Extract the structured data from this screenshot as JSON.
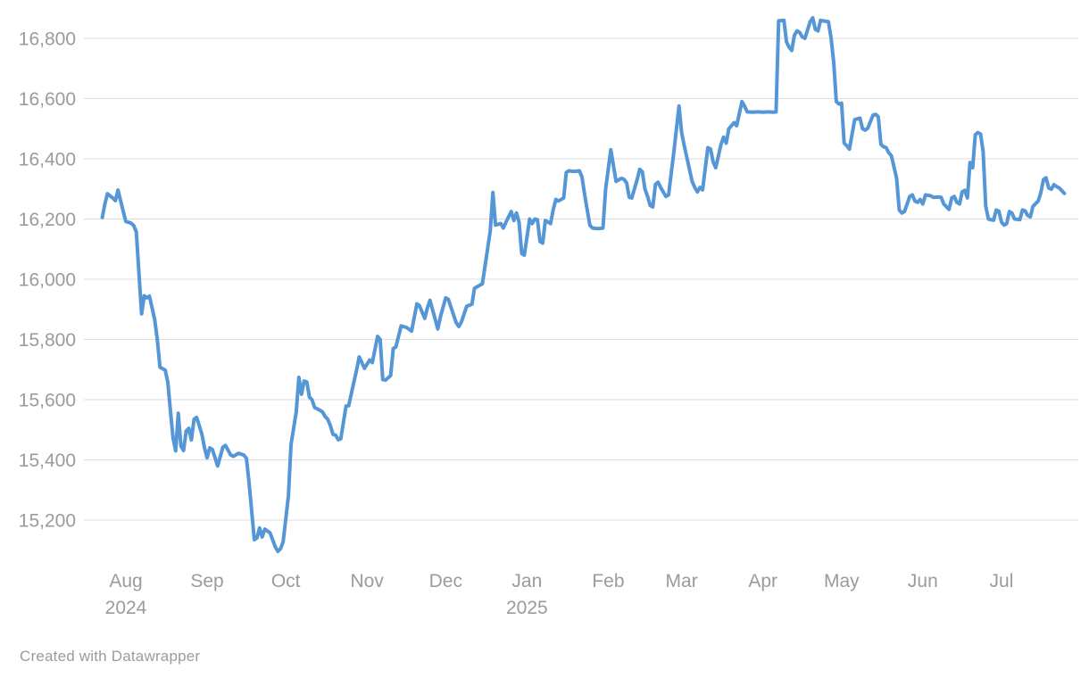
{
  "footer": {
    "credit": "Created with Datawrapper"
  },
  "chart_data": {
    "type": "line",
    "title": "",
    "xlabel": "",
    "ylabel": "",
    "grid": true,
    "legend": "none",
    "ylim": [
      15080,
      16880
    ],
    "x_range": [
      "2024-07-23",
      "2025-07-25"
    ],
    "colors": {
      "line": "#5596d6",
      "grid": "#dddddd",
      "labels": "#9b9b9b",
      "background": "#ffffff"
    },
    "y_ticks": [
      {
        "value": 16800,
        "label": "16,800"
      },
      {
        "value": 16600,
        "label": "16,600"
      },
      {
        "value": 16400,
        "label": "16,400"
      },
      {
        "value": 16200,
        "label": "16,200"
      },
      {
        "value": 16000,
        "label": "16,000"
      },
      {
        "value": 15800,
        "label": "15,800"
      },
      {
        "value": 15600,
        "label": "15,600"
      },
      {
        "value": 15400,
        "label": "15,400"
      },
      {
        "value": 15200,
        "label": "15,200"
      }
    ],
    "x_ticks": [
      {
        "label": "Aug",
        "date": "2024-08-01",
        "year": "2024"
      },
      {
        "label": "Sep",
        "date": "2024-09-01"
      },
      {
        "label": "Oct",
        "date": "2024-10-01"
      },
      {
        "label": "Nov",
        "date": "2024-11-01"
      },
      {
        "label": "Dec",
        "date": "2024-12-01"
      },
      {
        "label": "Jan",
        "date": "2025-01-01",
        "year": "2025"
      },
      {
        "label": "Feb",
        "date": "2025-02-01"
      },
      {
        "label": "Mar",
        "date": "2025-03-01"
      },
      {
        "label": "Apr",
        "date": "2025-04-01"
      },
      {
        "label": "May",
        "date": "2025-05-01"
      },
      {
        "label": "Jun",
        "date": "2025-06-01"
      },
      {
        "label": "Jul",
        "date": "2025-07-01"
      }
    ],
    "points": [
      [
        "2024-07-23",
        16205
      ],
      [
        "2024-07-24",
        16250
      ],
      [
        "2024-07-25",
        16284
      ],
      [
        "2024-07-27",
        16270
      ],
      [
        "2024-07-28",
        16261
      ],
      [
        "2024-07-29",
        16296
      ],
      [
        "2024-07-31",
        16225
      ],
      [
        "2024-08-01",
        16192
      ],
      [
        "2024-08-03",
        16186
      ],
      [
        "2024-08-04",
        16178
      ],
      [
        "2024-08-05",
        16157
      ],
      [
        "2024-08-07",
        15885
      ],
      [
        "2024-08-08",
        15945
      ],
      [
        "2024-08-09",
        15938
      ],
      [
        "2024-08-10",
        15944
      ],
      [
        "2024-08-12",
        15866
      ],
      [
        "2024-08-13",
        15800
      ],
      [
        "2024-08-14",
        15708
      ],
      [
        "2024-08-16",
        15698
      ],
      [
        "2024-08-17",
        15658
      ],
      [
        "2024-08-18",
        15564
      ],
      [
        "2024-08-19",
        15472
      ],
      [
        "2024-08-20",
        15430
      ],
      [
        "2024-08-21",
        15555
      ],
      [
        "2024-08-22",
        15446
      ],
      [
        "2024-08-23",
        15431
      ],
      [
        "2024-08-24",
        15496
      ],
      [
        "2024-08-25",
        15505
      ],
      [
        "2024-08-26",
        15466
      ],
      [
        "2024-08-27",
        15535
      ],
      [
        "2024-08-28",
        15541
      ],
      [
        "2024-08-29",
        15514
      ],
      [
        "2024-08-30",
        15485
      ],
      [
        "2024-08-31",
        15440
      ],
      [
        "2024-09-01",
        15407
      ],
      [
        "2024-09-02",
        15440
      ],
      [
        "2024-09-03",
        15435
      ],
      [
        "2024-09-05",
        15380
      ],
      [
        "2024-09-07",
        15442
      ],
      [
        "2024-09-08",
        15448
      ],
      [
        "2024-09-10",
        15416
      ],
      [
        "2024-09-11",
        15412
      ],
      [
        "2024-09-13",
        15422
      ],
      [
        "2024-09-15",
        15416
      ],
      [
        "2024-09-16",
        15405
      ],
      [
        "2024-09-17",
        15325
      ],
      [
        "2024-09-19",
        15135
      ],
      [
        "2024-09-20",
        15141
      ],
      [
        "2024-09-21",
        15174
      ],
      [
        "2024-09-22",
        15144
      ],
      [
        "2024-09-23",
        15170
      ],
      [
        "2024-09-25",
        15158
      ],
      [
        "2024-09-27",
        15111
      ],
      [
        "2024-09-28",
        15096
      ],
      [
        "2024-09-29",
        15105
      ],
      [
        "2024-09-30",
        15128
      ],
      [
        "2024-10-02",
        15280
      ],
      [
        "2024-10-03",
        15450
      ],
      [
        "2024-10-05",
        15560
      ],
      [
        "2024-10-06",
        15674
      ],
      [
        "2024-10-07",
        15618
      ],
      [
        "2024-10-08",
        15662
      ],
      [
        "2024-10-09",
        15659
      ],
      [
        "2024-10-10",
        15609
      ],
      [
        "2024-10-11",
        15600
      ],
      [
        "2024-10-12",
        15574
      ],
      [
        "2024-10-14",
        15565
      ],
      [
        "2024-10-15",
        15559
      ],
      [
        "2024-10-16",
        15544
      ],
      [
        "2024-10-17",
        15535
      ],
      [
        "2024-10-18",
        15514
      ],
      [
        "2024-10-19",
        15485
      ],
      [
        "2024-10-20",
        15482
      ],
      [
        "2024-10-21",
        15467
      ],
      [
        "2024-10-22",
        15470
      ],
      [
        "2024-10-23",
        15526
      ],
      [
        "2024-10-24",
        15579
      ],
      [
        "2024-10-25",
        15580
      ],
      [
        "2024-10-27",
        15659
      ],
      [
        "2024-10-28",
        15698
      ],
      [
        "2024-10-29",
        15742
      ],
      [
        "2024-10-31",
        15704
      ],
      [
        "2024-11-02",
        15732
      ],
      [
        "2024-11-03",
        15723
      ],
      [
        "2024-11-05",
        15810
      ],
      [
        "2024-11-06",
        15800
      ],
      [
        "2024-11-07",
        15667
      ],
      [
        "2024-11-08",
        15665
      ],
      [
        "2024-11-10",
        15680
      ],
      [
        "2024-11-11",
        15770
      ],
      [
        "2024-11-12",
        15775
      ],
      [
        "2024-11-14",
        15845
      ],
      [
        "2024-11-16",
        15840
      ],
      [
        "2024-11-18",
        15828
      ],
      [
        "2024-11-20",
        15918
      ],
      [
        "2024-11-21",
        15912
      ],
      [
        "2024-11-23",
        15870
      ],
      [
        "2024-11-24",
        15905
      ],
      [
        "2024-11-25",
        15930
      ],
      [
        "2024-11-28",
        15835
      ],
      [
        "2024-11-29",
        15875
      ],
      [
        "2024-12-01",
        15938
      ],
      [
        "2024-12-02",
        15933
      ],
      [
        "2024-12-05",
        15855
      ],
      [
        "2024-12-06",
        15843
      ],
      [
        "2024-12-07",
        15858
      ],
      [
        "2024-12-09",
        15910
      ],
      [
        "2024-12-11",
        15917
      ],
      [
        "2024-12-12",
        15970
      ],
      [
        "2024-12-14",
        15980
      ],
      [
        "2024-12-15",
        15985
      ],
      [
        "2024-12-16",
        16044
      ],
      [
        "2024-12-18",
        16160
      ],
      [
        "2024-12-19",
        16288
      ],
      [
        "2024-12-20",
        16180
      ],
      [
        "2024-12-22",
        16185
      ],
      [
        "2024-12-23",
        16170
      ],
      [
        "2024-12-24",
        16190
      ],
      [
        "2024-12-26",
        16225
      ],
      [
        "2024-12-27",
        16195
      ],
      [
        "2024-12-28",
        16220
      ],
      [
        "2024-12-29",
        16190
      ],
      [
        "2024-12-30",
        16085
      ],
      [
        "2024-12-31",
        16080
      ],
      [
        "2025-01-02",
        16200
      ],
      [
        "2025-01-03",
        16185
      ],
      [
        "2025-01-04",
        16200
      ],
      [
        "2025-01-05",
        16198
      ],
      [
        "2025-01-06",
        16125
      ],
      [
        "2025-01-07",
        16120
      ],
      [
        "2025-01-08",
        16195
      ],
      [
        "2025-01-09",
        16190
      ],
      [
        "2025-01-10",
        16185
      ],
      [
        "2025-01-11",
        16230
      ],
      [
        "2025-01-12",
        16265
      ],
      [
        "2025-01-13",
        16260
      ],
      [
        "2025-01-15",
        16270
      ],
      [
        "2025-01-16",
        16355
      ],
      [
        "2025-01-17",
        16360
      ],
      [
        "2025-01-19",
        16358
      ],
      [
        "2025-01-21",
        16360
      ],
      [
        "2025-01-22",
        16340
      ],
      [
        "2025-01-23",
        16280
      ],
      [
        "2025-01-24",
        16230
      ],
      [
        "2025-01-25",
        16180
      ],
      [
        "2025-01-26",
        16170
      ],
      [
        "2025-01-28",
        16168
      ],
      [
        "2025-01-30",
        16170
      ],
      [
        "2025-01-31",
        16300
      ],
      [
        "2025-02-02",
        16430
      ],
      [
        "2025-02-04",
        16325
      ],
      [
        "2025-02-06",
        16335
      ],
      [
        "2025-02-07",
        16332
      ],
      [
        "2025-02-08",
        16320
      ],
      [
        "2025-02-09",
        16272
      ],
      [
        "2025-02-10",
        16270
      ],
      [
        "2025-02-12",
        16330
      ],
      [
        "2025-02-13",
        16365
      ],
      [
        "2025-02-14",
        16357
      ],
      [
        "2025-02-15",
        16300
      ],
      [
        "2025-02-16",
        16275
      ],
      [
        "2025-02-17",
        16245
      ],
      [
        "2025-02-18",
        16240
      ],
      [
        "2025-02-19",
        16315
      ],
      [
        "2025-02-20",
        16322
      ],
      [
        "2025-02-21",
        16305
      ],
      [
        "2025-02-23",
        16275
      ],
      [
        "2025-02-24",
        16280
      ],
      [
        "2025-02-26",
        16420
      ],
      [
        "2025-02-28",
        16575
      ],
      [
        "2025-03-01",
        16487
      ],
      [
        "2025-03-02",
        16443
      ],
      [
        "2025-03-05",
        16325
      ],
      [
        "2025-03-06",
        16305
      ],
      [
        "2025-03-07",
        16290
      ],
      [
        "2025-03-08",
        16305
      ],
      [
        "2025-03-09",
        16297
      ],
      [
        "2025-03-11",
        16437
      ],
      [
        "2025-03-12",
        16433
      ],
      [
        "2025-03-13",
        16390
      ],
      [
        "2025-03-14",
        16370
      ],
      [
        "2025-03-16",
        16447
      ],
      [
        "2025-03-17",
        16472
      ],
      [
        "2025-03-18",
        16452
      ],
      [
        "2025-03-19",
        16500
      ],
      [
        "2025-03-21",
        16520
      ],
      [
        "2025-03-22",
        16510
      ],
      [
        "2025-03-24",
        16590
      ],
      [
        "2025-03-25",
        16575
      ],
      [
        "2025-03-26",
        16556
      ],
      [
        "2025-03-28",
        16555
      ],
      [
        "2025-03-30",
        16556
      ],
      [
        "2025-04-01",
        16555
      ],
      [
        "2025-04-03",
        16556
      ],
      [
        "2025-04-05",
        16555
      ],
      [
        "2025-04-06",
        16556
      ],
      [
        "2025-04-07",
        16858
      ],
      [
        "2025-04-09",
        16860
      ],
      [
        "2025-04-10",
        16788
      ],
      [
        "2025-04-11",
        16770
      ],
      [
        "2025-04-12",
        16760
      ],
      [
        "2025-04-13",
        16810
      ],
      [
        "2025-04-14",
        16825
      ],
      [
        "2025-04-15",
        16820
      ],
      [
        "2025-04-16",
        16805
      ],
      [
        "2025-04-17",
        16800
      ],
      [
        "2025-04-19",
        16855
      ],
      [
        "2025-04-20",
        16868
      ],
      [
        "2025-04-21",
        16830
      ],
      [
        "2025-04-22",
        16825
      ],
      [
        "2025-04-23",
        16860
      ],
      [
        "2025-04-24",
        16858
      ],
      [
        "2025-04-26",
        16855
      ],
      [
        "2025-04-27",
        16800
      ],
      [
        "2025-04-28",
        16720
      ],
      [
        "2025-04-29",
        16590
      ],
      [
        "2025-04-30",
        16582
      ],
      [
        "2025-05-01",
        16585
      ],
      [
        "2025-05-02",
        16452
      ],
      [
        "2025-05-03",
        16443
      ],
      [
        "2025-05-04",
        16432
      ],
      [
        "2025-05-06",
        16530
      ],
      [
        "2025-05-08",
        16535
      ],
      [
        "2025-05-09",
        16500
      ],
      [
        "2025-05-10",
        16495
      ],
      [
        "2025-05-11",
        16502
      ],
      [
        "2025-05-13",
        16545
      ],
      [
        "2025-05-14",
        16548
      ],
      [
        "2025-05-15",
        16540
      ],
      [
        "2025-05-16",
        16448
      ],
      [
        "2025-05-17",
        16440
      ],
      [
        "2025-05-18",
        16437
      ],
      [
        "2025-05-19",
        16420
      ],
      [
        "2025-05-20",
        16410
      ],
      [
        "2025-05-22",
        16335
      ],
      [
        "2025-05-23",
        16230
      ],
      [
        "2025-05-24",
        16220
      ],
      [
        "2025-05-25",
        16225
      ],
      [
        "2025-05-27",
        16275
      ],
      [
        "2025-05-28",
        16280
      ],
      [
        "2025-05-29",
        16260
      ],
      [
        "2025-05-30",
        16255
      ],
      [
        "2025-05-31",
        16265
      ],
      [
        "2025-06-01",
        16250
      ],
      [
        "2025-06-02",
        16280
      ],
      [
        "2025-06-04",
        16277
      ],
      [
        "2025-06-05",
        16272
      ],
      [
        "2025-06-07",
        16273
      ],
      [
        "2025-06-08",
        16272
      ],
      [
        "2025-06-09",
        16250
      ],
      [
        "2025-06-11",
        16232
      ],
      [
        "2025-06-12",
        16270
      ],
      [
        "2025-06-13",
        16275
      ],
      [
        "2025-06-14",
        16255
      ],
      [
        "2025-06-15",
        16250
      ],
      [
        "2025-06-16",
        16290
      ],
      [
        "2025-06-17",
        16295
      ],
      [
        "2025-06-18",
        16270
      ],
      [
        "2025-06-19",
        16388
      ],
      [
        "2025-06-20",
        16370
      ],
      [
        "2025-06-21",
        16480
      ],
      [
        "2025-06-22",
        16487
      ],
      [
        "2025-06-23",
        16482
      ],
      [
        "2025-06-24",
        16424
      ],
      [
        "2025-06-25",
        16243
      ],
      [
        "2025-06-26",
        16200
      ],
      [
        "2025-06-28",
        16196
      ],
      [
        "2025-06-29",
        16230
      ],
      [
        "2025-06-30",
        16226
      ],
      [
        "2025-07-01",
        16190
      ],
      [
        "2025-07-02",
        16180
      ],
      [
        "2025-07-03",
        16185
      ],
      [
        "2025-07-04",
        16225
      ],
      [
        "2025-07-05",
        16220
      ],
      [
        "2025-07-06",
        16200
      ],
      [
        "2025-07-08",
        16198
      ],
      [
        "2025-07-09",
        16230
      ],
      [
        "2025-07-10",
        16227
      ],
      [
        "2025-07-11",
        16212
      ],
      [
        "2025-07-12",
        16207
      ],
      [
        "2025-07-13",
        16242
      ],
      [
        "2025-07-15",
        16260
      ],
      [
        "2025-07-16",
        16287
      ],
      [
        "2025-07-17",
        16331
      ],
      [
        "2025-07-18",
        16337
      ],
      [
        "2025-07-19",
        16303
      ],
      [
        "2025-07-20",
        16299
      ],
      [
        "2025-07-21",
        16314
      ],
      [
        "2025-07-22",
        16308
      ],
      [
        "2025-07-23",
        16303
      ],
      [
        "2025-07-25",
        16285
      ]
    ]
  }
}
